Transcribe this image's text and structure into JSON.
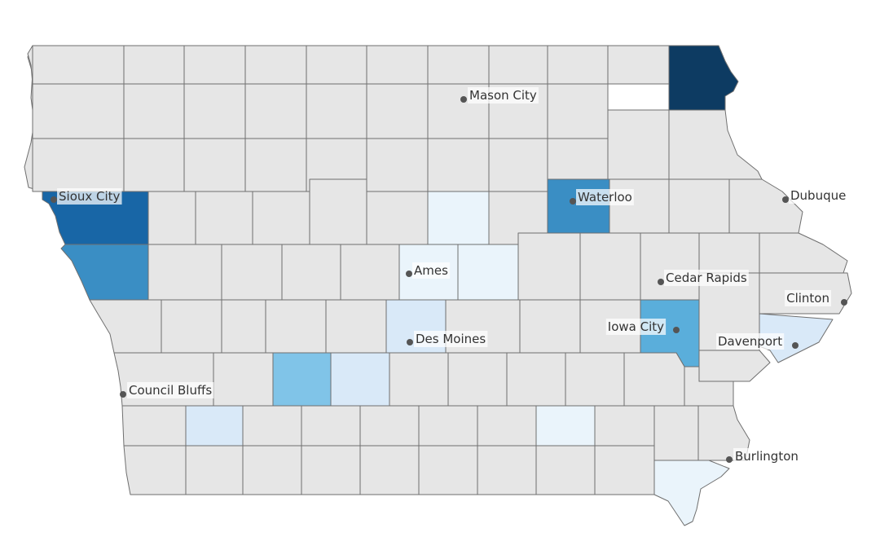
{
  "map": {
    "region": "Iowa",
    "colors": {
      "default": "#e6e6e6",
      "border": "#6f6f6f",
      "very_light": "#eaf4fb",
      "light": "#d9e9f8",
      "medium_light": "#80c4e8",
      "medium": "#5aaedb",
      "medium_dark": "#3a8ec4",
      "dark": "#1866a6",
      "darkest": "#0d3b62"
    },
    "highlighted_counties": [
      {
        "id": "allamakee",
        "shade": "darkest"
      },
      {
        "id": "woodbury",
        "shade": "dark"
      },
      {
        "id": "monona",
        "shade": "medium_dark"
      },
      {
        "id": "black-hawk",
        "shade": "medium_dark"
      },
      {
        "id": "johnson",
        "shade": "medium"
      },
      {
        "id": "madison",
        "shade": "medium_light"
      },
      {
        "id": "hamilton",
        "shade": "very_light"
      },
      {
        "id": "boone",
        "shade": "very_light"
      },
      {
        "id": "story",
        "shade": "very_light"
      },
      {
        "id": "polk",
        "shade": "light"
      },
      {
        "id": "warren",
        "shade": "light"
      },
      {
        "id": "scott",
        "shade": "light"
      },
      {
        "id": "montgomery",
        "shade": "light"
      },
      {
        "id": "wapello",
        "shade": "very_light"
      },
      {
        "id": "lee",
        "shade": "very_light"
      }
    ],
    "cities": [
      {
        "name": "Mason City",
        "key": "mason-city"
      },
      {
        "name": "Sioux City",
        "key": "sioux-city"
      },
      {
        "name": "Waterloo",
        "key": "waterloo"
      },
      {
        "name": "Dubuque",
        "key": "dubuque"
      },
      {
        "name": "Ames",
        "key": "ames"
      },
      {
        "name": "Cedar Rapids",
        "key": "cedar-rapids"
      },
      {
        "name": "Clinton",
        "key": "clinton"
      },
      {
        "name": "Iowa City",
        "key": "iowa-city"
      },
      {
        "name": "Davenport",
        "key": "davenport"
      },
      {
        "name": "Des Moines",
        "key": "des-moines"
      },
      {
        "name": "Council Bluffs",
        "key": "council-bluffs"
      },
      {
        "name": "Burlington",
        "key": "burlington"
      }
    ]
  }
}
